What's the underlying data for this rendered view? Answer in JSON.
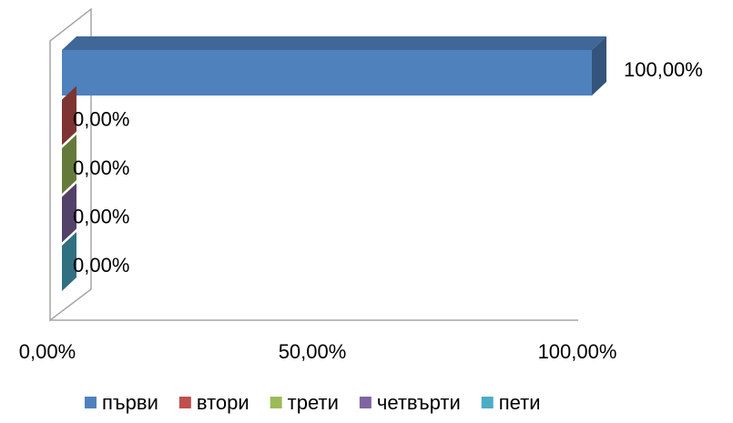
{
  "chart_data": {
    "type": "bar",
    "orientation": "horizontal",
    "three_d": true,
    "categories": [
      null
    ],
    "series": [
      {
        "name": "първи",
        "color": "#4f81bd",
        "values": [
          100
        ],
        "value_labels": [
          "100,00%"
        ]
      },
      {
        "name": "втори",
        "color": "#c0504d",
        "values": [
          0
        ],
        "value_labels": [
          "0,00%"
        ]
      },
      {
        "name": "трети",
        "color": "#9bbb59",
        "values": [
          0
        ],
        "value_labels": [
          "0,00%"
        ]
      },
      {
        "name": "четвърти",
        "color": "#8064a2",
        "values": [
          0
        ],
        "value_labels": [
          "0,00%"
        ]
      },
      {
        "name": "пети",
        "color": "#4bacc6",
        "values": [
          0
        ],
        "value_labels": [
          "0,00%"
        ]
      }
    ],
    "xlim": [
      0,
      100
    ],
    "xticks": [
      {
        "value": 0,
        "label": "0,00%"
      },
      {
        "value": 50,
        "label": "50,00%"
      },
      {
        "value": 100,
        "label": "100,00%"
      }
    ],
    "grid": false,
    "legend": "bottom"
  }
}
